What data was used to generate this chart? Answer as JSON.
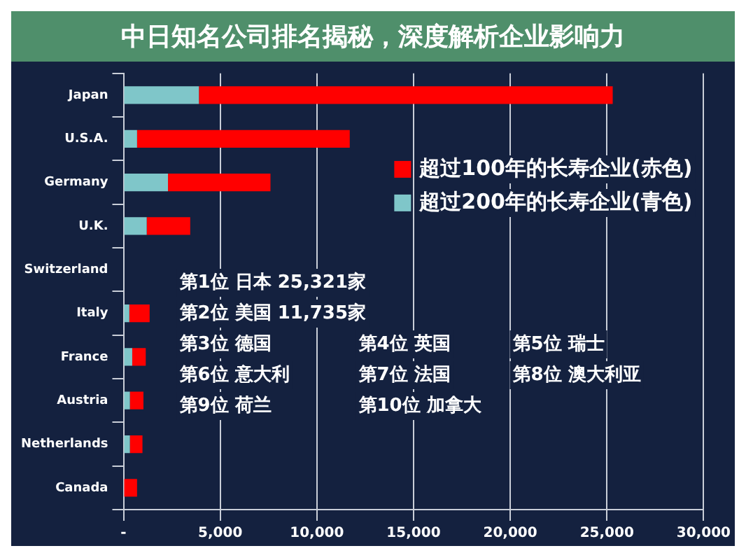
{
  "chart_data": {
    "type": "bar",
    "orientation": "horizontal",
    "stacked": true,
    "title": "中日知名公司排名揭秘，深度解析企业影响力",
    "categories": [
      "Japan",
      "U.S.A.",
      "Germany",
      "U.K.",
      "Switzerland",
      "Italy",
      "France",
      "Austria",
      "Netherlands",
      "Canada"
    ],
    "series": [
      {
        "name": "超过200年的长寿企业(青色)",
        "color": "#7fc6c9",
        "values": [
          3900,
          700,
          2300,
          1200,
          null,
          300,
          450,
          330,
          330,
          0
        ]
      },
      {
        "name": "超过100年的长寿企业(赤色)",
        "color": "#ff0000",
        "values": [
          21400,
          11000,
          5300,
          2250,
          null,
          1050,
          700,
          700,
          650,
          700
        ]
      }
    ],
    "xlim": [
      0,
      30000
    ],
    "xticks": [
      {
        "value": 0,
        "label": "-"
      },
      {
        "value": 5000,
        "label": "5,000"
      },
      {
        "value": 10000,
        "label": "10,000"
      },
      {
        "value": 15000,
        "label": "15,000"
      },
      {
        "value": 20000,
        "label": "20,000"
      },
      {
        "value": 25000,
        "label": "25,000"
      },
      {
        "value": 30000,
        "label": "30,000"
      }
    ],
    "grid": "x",
    "legend": "top right",
    "annotations": [
      "第1位 日本 25,321家",
      "第2位 美国 11,735家",
      "第3位 德国",
      "第4位 英国",
      "第5位 瑞士",
      "第6位 意大利",
      "第7位 法国",
      "第8位 澳大利亚",
      "第9位 荷兰",
      "第10位 加拿大"
    ]
  }
}
